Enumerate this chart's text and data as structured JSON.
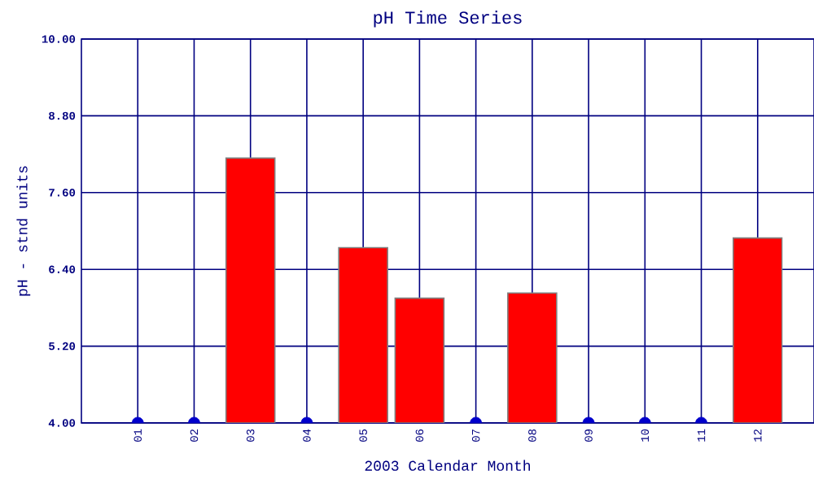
{
  "chart_data": {
    "type": "bar",
    "title": "pH Time Series",
    "xlabel": "2003 Calendar Month",
    "ylabel": "pH - stnd units",
    "categories": [
      "01",
      "02",
      "03",
      "04",
      "05",
      "06",
      "07",
      "08",
      "09",
      "10",
      "11",
      "12"
    ],
    "ylim": [
      4,
      10
    ],
    "yticks": [
      {
        "value": 4,
        "label": "4.00"
      },
      {
        "value": 5.2,
        "label": "5.20"
      },
      {
        "value": 6.4,
        "label": "6.40"
      },
      {
        "value": 7.6,
        "label": "7.60"
      },
      {
        "value": 8.8,
        "label": "8.80"
      },
      {
        "value": 10,
        "label": "10.00"
      }
    ],
    "grid": true,
    "series": [
      {
        "color": "#ff0000",
        "values": [
          null,
          null,
          8.14,
          null,
          6.74,
          5.95,
          null,
          6.03,
          null,
          null,
          null,
          6.89
        ]
      },
      {
        "type": "scatter",
        "color": "#0000cc",
        "marker": "circle",
        "values": [
          4,
          4,
          null,
          4,
          null,
          null,
          4,
          null,
          4,
          4,
          4,
          null
        ]
      }
    ]
  }
}
